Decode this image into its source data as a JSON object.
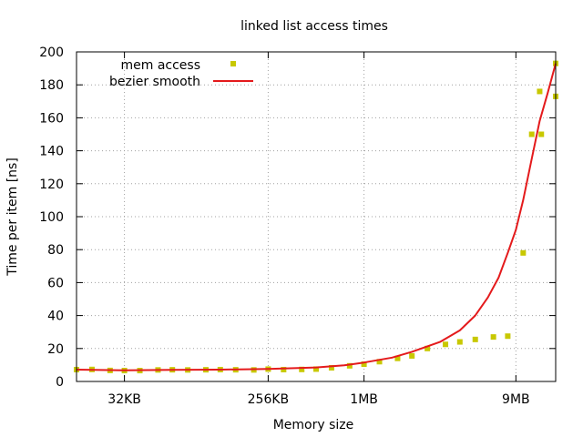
{
  "chart_data": {
    "type": "scatter",
    "title": "linked list access times",
    "xlabel": "Memory size",
    "ylabel": "Time per item [ns]",
    "x_scale": "log2",
    "xlim_kb": [
      16,
      16384
    ],
    "ylim": [
      0,
      200
    ],
    "y_ticks": [
      0,
      20,
      40,
      60,
      80,
      100,
      120,
      140,
      160,
      180,
      200
    ],
    "x_ticks": [
      {
        "label": "32KB",
        "kb": 32
      },
      {
        "label": "256KB",
        "kb": 256
      },
      {
        "label": "1MB",
        "kb": 1024
      },
      {
        "label": "9MB",
        "kb": 9216
      }
    ],
    "grid": true,
    "legend_position": "top-left",
    "series": [
      {
        "name": "mem access",
        "style": "points",
        "color": "#c8c800",
        "x_kb": [
          16,
          20,
          26,
          32,
          40,
          52,
          64,
          80,
          104,
          128,
          160,
          208,
          256,
          320,
          416,
          512,
          640,
          832,
          1024,
          1280,
          1664,
          2048,
          2560,
          3328,
          4096,
          5120,
          6656,
          8192,
          10240,
          13312,
          16384
        ],
        "y": [
          7.2,
          7.3,
          6.7,
          6.6,
          6.6,
          7.0,
          7.1,
          7.0,
          7.1,
          7.2,
          7.1,
          7.0,
          7.5,
          7.2,
          7.3,
          7.5,
          8.3,
          9.5,
          10.5,
          12.0,
          14.0,
          15.5,
          20.0,
          22.5,
          24.0,
          25.5,
          27.0,
          27.5,
          78.0,
          150.0,
          173.0
        ]
      },
      {
        "name": "",
        "style": "points",
        "color": "#c8c800",
        "x_kb": [
          11585,
          13000,
          16384
        ],
        "y": [
          150.0,
          176.0,
          193.0
        ]
      },
      {
        "name": "bezier smooth",
        "style": "line",
        "color": "#e41a1c",
        "x_kb": [
          16,
          32,
          64,
          128,
          256,
          512,
          768,
          1024,
          1536,
          2048,
          3072,
          4096,
          5120,
          6144,
          7168,
          8192,
          9216,
          10240,
          11585,
          13000,
          14596,
          16384
        ],
        "y": [
          7.2,
          6.8,
          7.0,
          7.2,
          7.6,
          8.5,
          9.8,
          11.5,
          14.5,
          18.0,
          24.0,
          31.0,
          40.0,
          51.0,
          63.0,
          78.0,
          92.0,
          110.0,
          135.0,
          158.0,
          175.0,
          193.0
        ]
      }
    ]
  }
}
